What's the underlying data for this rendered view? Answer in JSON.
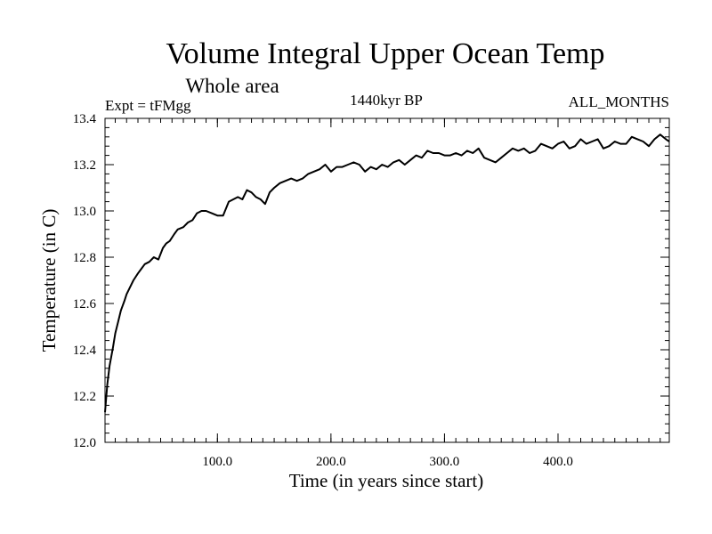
{
  "chart_data": {
    "type": "line",
    "title": "Volume Integral Upper Ocean Temp",
    "subtitle": "Whole area",
    "experiment_label": "Expt = tFMgg",
    "period_label": "1440kyr BP",
    "months_label": "ALL_MONTHS",
    "xlabel": "Time (in years since start)",
    "ylabel": "Temperature (in C)",
    "xlim": [
      1,
      498
    ],
    "ylim": [
      12.0,
      13.4
    ],
    "x_tick_labels": [
      "100.0",
      "200.0",
      "300.0",
      "400.0"
    ],
    "x_ticks": [
      100,
      200,
      300,
      400
    ],
    "y_tick_labels": [
      "12.0",
      "12.2",
      "12.4",
      "12.6",
      "12.8",
      "13.0",
      "13.2",
      "13.4"
    ],
    "y_ticks": [
      12.0,
      12.2,
      12.4,
      12.6,
      12.8,
      13.0,
      13.2,
      13.4
    ],
    "x_minor_step": 10,
    "y_minor_step": 0.04,
    "series": [
      {
        "name": "Volume integral upper ocean temperature",
        "x": [
          1,
          3,
          5,
          8,
          10,
          13,
          15,
          18,
          20,
          23,
          26,
          30,
          33,
          36,
          40,
          44,
          48,
          52,
          55,
          58,
          62,
          65,
          70,
          74,
          78,
          82,
          86,
          90,
          95,
          100,
          105,
          110,
          114,
          118,
          122,
          126,
          130,
          134,
          138,
          142,
          146,
          150,
          155,
          160,
          165,
          170,
          175,
          180,
          185,
          190,
          195,
          200,
          205,
          210,
          215,
          220,
          225,
          230,
          235,
          240,
          245,
          250,
          255,
          260,
          265,
          270,
          275,
          280,
          285,
          290,
          295,
          300,
          305,
          310,
          315,
          320,
          325,
          330,
          335,
          340,
          345,
          350,
          355,
          360,
          365,
          370,
          375,
          380,
          385,
          390,
          395,
          400,
          405,
          410,
          415,
          420,
          425,
          430,
          435,
          440,
          445,
          450,
          455,
          460,
          465,
          470,
          475,
          480,
          485,
          490,
          495,
          498
        ],
        "y": [
          12.13,
          12.25,
          12.33,
          12.41,
          12.47,
          12.53,
          12.57,
          12.61,
          12.64,
          12.67,
          12.7,
          12.73,
          12.75,
          12.77,
          12.78,
          12.8,
          12.79,
          12.84,
          12.86,
          12.87,
          12.9,
          12.92,
          12.93,
          12.95,
          12.96,
          12.99,
          13.0,
          13.0,
          12.99,
          12.98,
          12.98,
          13.04,
          13.05,
          13.06,
          13.05,
          13.09,
          13.08,
          13.06,
          13.05,
          13.03,
          13.08,
          13.1,
          13.12,
          13.13,
          13.14,
          13.13,
          13.14,
          13.16,
          13.17,
          13.18,
          13.2,
          13.17,
          13.19,
          13.19,
          13.2,
          13.21,
          13.2,
          13.17,
          13.19,
          13.18,
          13.2,
          13.19,
          13.21,
          13.22,
          13.2,
          13.22,
          13.24,
          13.23,
          13.26,
          13.25,
          13.25,
          13.24,
          13.24,
          13.25,
          13.24,
          13.26,
          13.25,
          13.27,
          13.23,
          13.22,
          13.21,
          13.23,
          13.25,
          13.27,
          13.26,
          13.27,
          13.25,
          13.26,
          13.29,
          13.28,
          13.27,
          13.29,
          13.3,
          13.27,
          13.28,
          13.31,
          13.29,
          13.3,
          13.31,
          13.27,
          13.28,
          13.3,
          13.29,
          13.29,
          13.32,
          13.31,
          13.3,
          13.28,
          13.31,
          13.33,
          13.31,
          13.3
        ]
      }
    ]
  }
}
